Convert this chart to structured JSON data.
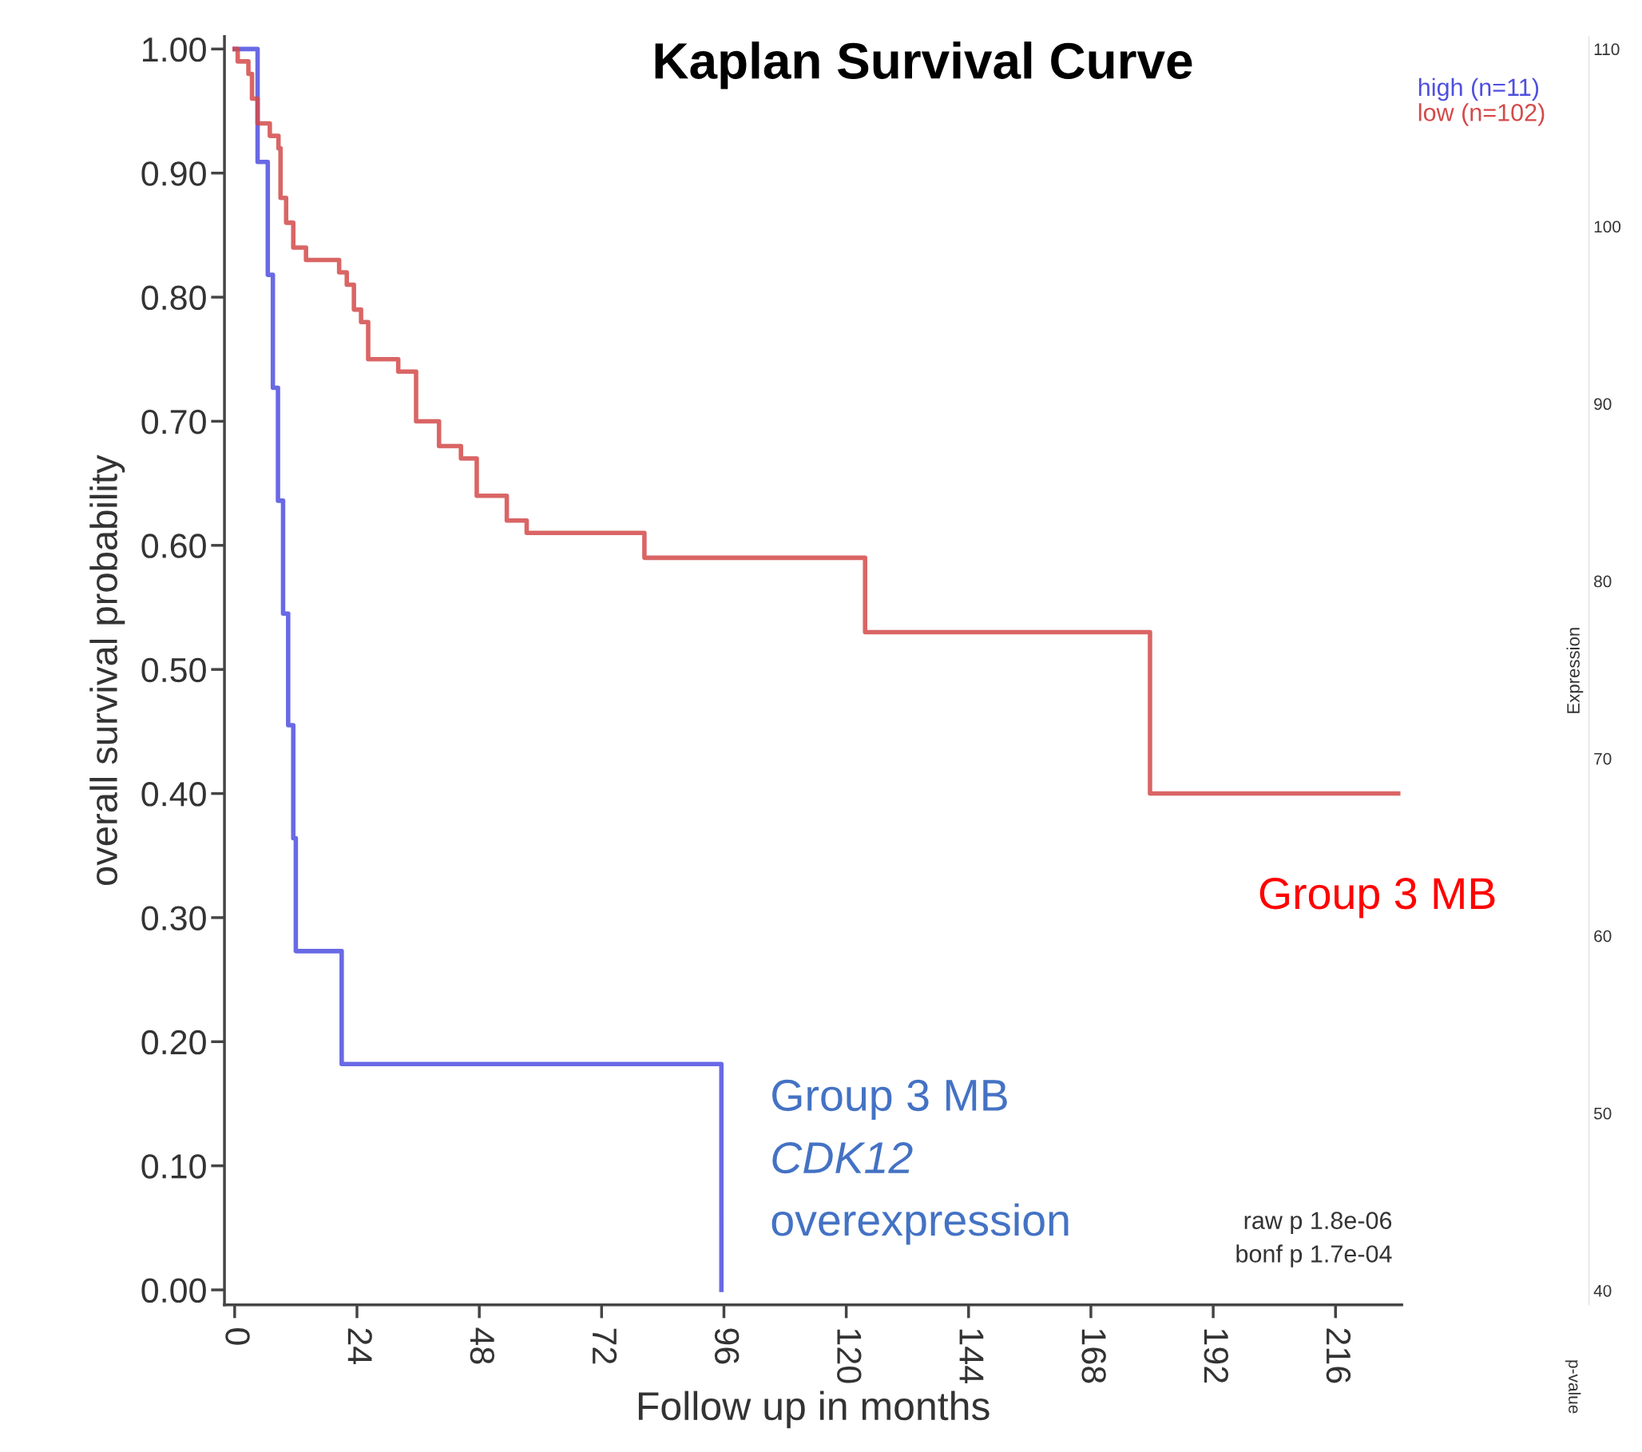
{
  "chart_data": {
    "type": "step",
    "title": "Kaplan Survival Curve",
    "xlabel": "Follow up in months",
    "ylabel": "overall survival probability",
    "y2label": "Expression",
    "xlim": [
      -2,
      229
    ],
    "xticks": [
      0,
      24,
      48,
      72,
      96,
      120,
      144,
      168,
      192,
      216
    ],
    "ylim": [
      -0.012,
      1.01
    ],
    "yticks": [
      {
        "value": 0,
        "label": "0.00"
      },
      {
        "value": 0.1,
        "label": "0.10"
      },
      {
        "value": 0.2,
        "label": "0.20"
      },
      {
        "value": 0.3,
        "label": "0.30"
      },
      {
        "value": 0.4,
        "label": "0.40"
      },
      {
        "value": 0.5,
        "label": "0.50"
      },
      {
        "value": 0.6,
        "label": "0.60"
      },
      {
        "value": 0.7,
        "label": "0.70"
      },
      {
        "value": 0.8,
        "label": "0.80"
      },
      {
        "value": 0.9,
        "label": "0.90"
      },
      {
        "value": 1,
        "label": "1.00"
      }
    ],
    "y2lim": [
      39.2,
      110.7
    ],
    "y2ticks": [
      40,
      50,
      60,
      70,
      80,
      90,
      100,
      110
    ],
    "grid": false,
    "legend": "top right",
    "series": [
      {
        "name": "high (n=11)",
        "color": "#4f4fe0",
        "x": [
          0,
          4.5,
          6.5,
          7.5,
          8.5,
          9.5,
          10.5,
          11.5,
          12,
          21,
          95.5
        ],
        "values": [
          1,
          0.909,
          0.818,
          0.727,
          0.636,
          0.545,
          0.455,
          0.364,
          0.273,
          0.182,
          0
        ]
      },
      {
        "name": "low (n=102)",
        "color": "#d44a4a",
        "x": [
          0,
          0.6,
          2.7,
          3.4,
          4.5,
          6.9,
          8.6,
          9.0,
          10.1,
          11.5,
          14.0,
          20.5,
          22.0,
          23.4,
          24.8,
          26.2,
          32.1,
          35.6,
          40.1,
          44.4,
          47.5,
          53.4,
          57.3,
          80.4,
          123.7,
          179.6,
          228.3
        ],
        "values": [
          1.0,
          0.99,
          0.98,
          0.96,
          0.94,
          0.93,
          0.92,
          0.88,
          0.86,
          0.84,
          0.83,
          0.82,
          0.81,
          0.79,
          0.78,
          0.75,
          0.74,
          0.7,
          0.68,
          0.67,
          0.64,
          0.62,
          0.61,
          0.59,
          0.53,
          0.4,
          0.4
        ]
      }
    ],
    "annotations": [
      "Group 3 MB",
      "Group 3 MB",
      "CDK12",
      "overexpression",
      "raw p 1.8e-06",
      "bonf p 1.7e-04",
      "p-value"
    ]
  }
}
